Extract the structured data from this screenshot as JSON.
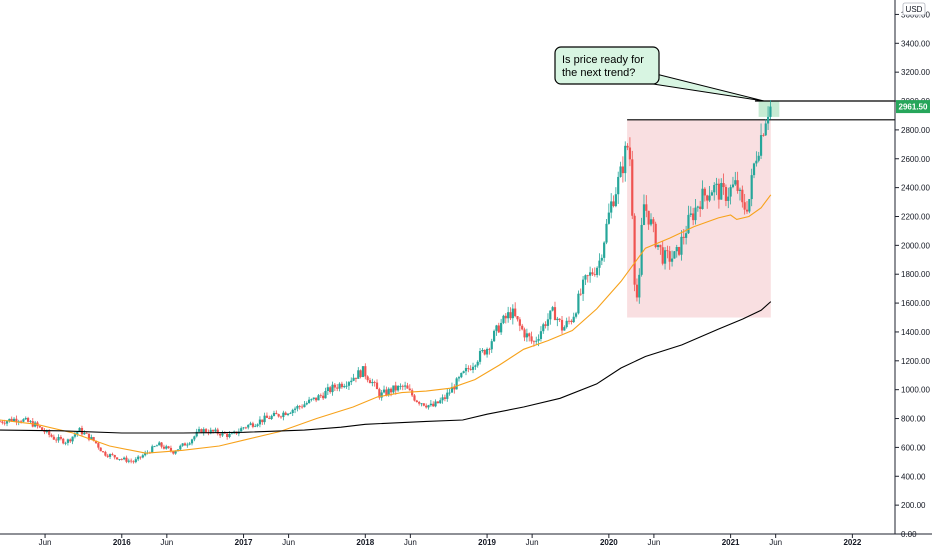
{
  "chart_data": {
    "type": "candlestick",
    "currency_label": "USD",
    "y_axis": {
      "range": [
        0,
        3700
      ],
      "ticks": [
        {
          "value": 3600,
          "label": "3600.00"
        },
        {
          "value": 3400,
          "label": "3400.00"
        },
        {
          "value": 3200,
          "label": "3200.00"
        },
        {
          "value": 3000,
          "label": "3000.00"
        },
        {
          "value": 2800,
          "label": "2800.00"
        },
        {
          "value": 2600,
          "label": "2600.00"
        },
        {
          "value": 2400,
          "label": "2400.00"
        },
        {
          "value": 2200,
          "label": "2200.00"
        },
        {
          "value": 2000,
          "label": "2000.00"
        },
        {
          "value": 1800,
          "label": "1800.00"
        },
        {
          "value": 1600,
          "label": "1600.00"
        },
        {
          "value": 1400,
          "label": "1400.00"
        },
        {
          "value": 1200,
          "label": "1200.00"
        },
        {
          "value": 1000,
          "label": "1000.00"
        },
        {
          "value": 800,
          "label": "800.00"
        },
        {
          "value": 600,
          "label": "600.00"
        },
        {
          "value": 400,
          "label": "400.00"
        },
        {
          "value": 200,
          "label": "200.00"
        },
        {
          "value": 0,
          "label": "0.00"
        }
      ]
    },
    "x_axis": {
      "range": [
        2015.0,
        2022.35
      ],
      "ticks": [
        {
          "value": 2015.37,
          "label": "Jun",
          "bold": false
        },
        {
          "value": 2016.0,
          "label": "2016",
          "bold": true
        },
        {
          "value": 2016.37,
          "label": "Jun",
          "bold": false
        },
        {
          "value": 2017.0,
          "label": "2017",
          "bold": true
        },
        {
          "value": 2017.37,
          "label": "Jun",
          "bold": false
        },
        {
          "value": 2018.0,
          "label": "2018",
          "bold": true
        },
        {
          "value": 2018.37,
          "label": "Jun",
          "bold": false
        },
        {
          "value": 2019.0,
          "label": "2019",
          "bold": true
        },
        {
          "value": 2019.37,
          "label": "Jun",
          "bold": false
        },
        {
          "value": 2020.0,
          "label": "2020",
          "bold": true
        },
        {
          "value": 2020.37,
          "label": "Jun",
          "bold": false
        },
        {
          "value": 2021.0,
          "label": "2021",
          "bold": true
        },
        {
          "value": 2021.37,
          "label": "Jun",
          "bold": false
        },
        {
          "value": 2022.0,
          "label": "2022",
          "bold": true
        }
      ]
    },
    "price_anchors": [
      [
        2015.0,
        780
      ],
      [
        2015.15,
        800
      ],
      [
        2015.28,
        760
      ],
      [
        2015.45,
        660
      ],
      [
        2015.55,
        640
      ],
      [
        2015.65,
        720
      ],
      [
        2015.78,
        640
      ],
      [
        2015.85,
        560
      ],
      [
        2016.0,
        520
      ],
      [
        2016.1,
        500
      ],
      [
        2016.2,
        560
      ],
      [
        2016.3,
        620
      ],
      [
        2016.42,
        570
      ],
      [
        2016.55,
        640
      ],
      [
        2016.65,
        720
      ],
      [
        2016.8,
        700
      ],
      [
        2016.9,
        680
      ],
      [
        2017.0,
        740
      ],
      [
        2017.15,
        790
      ],
      [
        2017.3,
        830
      ],
      [
        2017.45,
        880
      ],
      [
        2017.6,
        940
      ],
      [
        2017.75,
        1020
      ],
      [
        2017.85,
        1060
      ],
      [
        2017.98,
        1130
      ],
      [
        2018.05,
        1060
      ],
      [
        2018.12,
        960
      ],
      [
        2018.22,
        1000
      ],
      [
        2018.32,
        1020
      ],
      [
        2018.42,
        930
      ],
      [
        2018.55,
        880
      ],
      [
        2018.65,
        940
      ],
      [
        2018.78,
        1080
      ],
      [
        2018.9,
        1200
      ],
      [
        2019.0,
        1290
      ],
      [
        2019.1,
        1440
      ],
      [
        2019.2,
        1540
      ],
      [
        2019.28,
        1420
      ],
      [
        2019.38,
        1320
      ],
      [
        2019.48,
        1470
      ],
      [
        2019.55,
        1540
      ],
      [
        2019.62,
        1420
      ],
      [
        2019.7,
        1500
      ],
      [
        2019.8,
        1740
      ],
      [
        2019.92,
        1880
      ],
      [
        2020.02,
        2290
      ],
      [
        2020.1,
        2500
      ],
      [
        2020.15,
        2700
      ],
      [
        2020.18,
        2580
      ],
      [
        2020.2,
        2050
      ],
      [
        2020.22,
        1580
      ],
      [
        2020.25,
        1750
      ],
      [
        2020.28,
        2300
      ],
      [
        2020.32,
        2220
      ],
      [
        2020.38,
        2050
      ],
      [
        2020.45,
        1910
      ],
      [
        2020.55,
        1920
      ],
      [
        2020.65,
        2150
      ],
      [
        2020.75,
        2320
      ],
      [
        2020.85,
        2400
      ],
      [
        2020.95,
        2350
      ],
      [
        2021.05,
        2420
      ],
      [
        2021.1,
        2250
      ],
      [
        2021.15,
        2300
      ],
      [
        2021.2,
        2600
      ],
      [
        2021.25,
        2760
      ],
      [
        2021.3,
        2940
      ],
      [
        2021.33,
        2961
      ]
    ],
    "moving_averages": [
      {
        "color": "#f7a21b",
        "points": [
          [
            2015.0,
            790
          ],
          [
            2015.3,
            760
          ],
          [
            2015.6,
            700
          ],
          [
            2015.9,
            610
          ],
          [
            2016.2,
            560
          ],
          [
            2016.5,
            580
          ],
          [
            2016.8,
            610
          ],
          [
            2017.0,
            650
          ],
          [
            2017.3,
            710
          ],
          [
            2017.6,
            800
          ],
          [
            2017.9,
            880
          ],
          [
            2018.1,
            950
          ],
          [
            2018.3,
            980
          ],
          [
            2018.5,
            990
          ],
          [
            2018.7,
            1010
          ],
          [
            2018.9,
            1070
          ],
          [
            2019.1,
            1170
          ],
          [
            2019.3,
            1280
          ],
          [
            2019.5,
            1340
          ],
          [
            2019.7,
            1410
          ],
          [
            2019.9,
            1560
          ],
          [
            2020.1,
            1750
          ],
          [
            2020.3,
            1980
          ],
          [
            2020.5,
            2050
          ],
          [
            2020.7,
            2130
          ],
          [
            2020.9,
            2190
          ],
          [
            2021.0,
            2210
          ],
          [
            2021.05,
            2180
          ],
          [
            2021.15,
            2200
          ],
          [
            2021.25,
            2260
          ],
          [
            2021.33,
            2350
          ]
        ]
      },
      {
        "color": "#000000",
        "points": [
          [
            2015.0,
            720
          ],
          [
            2015.5,
            715
          ],
          [
            2016.0,
            700
          ],
          [
            2016.5,
            700
          ],
          [
            2017.0,
            705
          ],
          [
            2017.5,
            720
          ],
          [
            2017.8,
            740
          ],
          [
            2018.0,
            760
          ],
          [
            2018.5,
            780
          ],
          [
            2018.8,
            790
          ],
          [
            2019.0,
            830
          ],
          [
            2019.3,
            880
          ],
          [
            2019.6,
            940
          ],
          [
            2019.9,
            1040
          ],
          [
            2020.1,
            1150
          ],
          [
            2020.3,
            1230
          ],
          [
            2020.6,
            1310
          ],
          [
            2020.9,
            1420
          ],
          [
            2021.1,
            1490
          ],
          [
            2021.25,
            1550
          ],
          [
            2021.33,
            1610
          ]
        ]
      }
    ],
    "current_price": {
      "value": 2961.5,
      "label": "2961.50"
    },
    "horizontal_lines": [
      {
        "value": 3000,
        "x_start": 2021.2,
        "x_end": 2022.35
      },
      {
        "value": 2870,
        "x_start": 2020.15,
        "x_end": 2022.35
      }
    ],
    "zones": [
      {
        "name": "range-box",
        "x0": 2020.15,
        "x1": 2021.33,
        "y0": 1500,
        "y1": 2870,
        "color": "#f8d7da"
      },
      {
        "name": "target-box",
        "x0": 2021.23,
        "x1": 2021.4,
        "y0": 2890,
        "y1": 3000,
        "color": "#b8e6c8"
      }
    ],
    "annotation": {
      "line1": "Is price ready for",
      "line2": "the next trend?"
    }
  }
}
